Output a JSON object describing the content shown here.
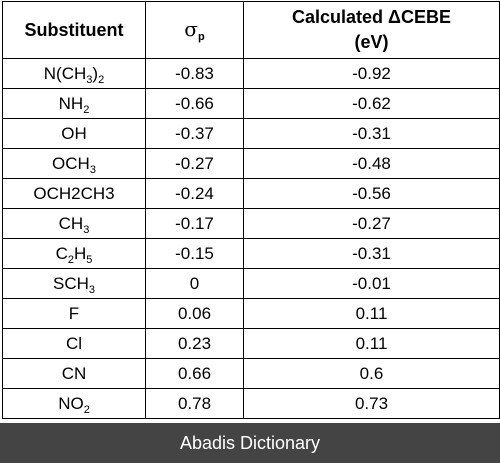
{
  "table": {
    "headers": {
      "substituent": "Substituent",
      "sigma_symbol": "σ",
      "sigma_subscript": "p",
      "cebe_line1_prefix": "Calculated ",
      "cebe_line1_delta": "ΔCEBE",
      "cebe_line2": "(eV)"
    },
    "rows": [
      {
        "sub_parts": [
          [
            "N(CH",
            false
          ],
          [
            "3",
            true
          ],
          [
            ")",
            false
          ],
          [
            "2",
            true
          ]
        ],
        "sigma_p": "-0.83",
        "delta_cebe": "-0.92"
      },
      {
        "sub_parts": [
          [
            "NH",
            false
          ],
          [
            "2",
            true
          ]
        ],
        "sigma_p": "-0.66",
        "delta_cebe": "-0.62"
      },
      {
        "sub_parts": [
          [
            "OH",
            false
          ]
        ],
        "sigma_p": "-0.37",
        "delta_cebe": "-0.31"
      },
      {
        "sub_parts": [
          [
            "OCH",
            false
          ],
          [
            "3",
            true
          ]
        ],
        "sigma_p": "-0.27",
        "delta_cebe": "-0.48"
      },
      {
        "sub_parts": [
          [
            "OCH2CH3",
            false
          ]
        ],
        "sigma_p": "-0.24",
        "delta_cebe": "-0.56"
      },
      {
        "sub_parts": [
          [
            "CH",
            false
          ],
          [
            "3",
            true
          ]
        ],
        "sigma_p": "-0.17",
        "delta_cebe": "-0.27"
      },
      {
        "sub_parts": [
          [
            "C",
            false
          ],
          [
            "2",
            true
          ],
          [
            "H",
            false
          ],
          [
            "5",
            true
          ]
        ],
        "sigma_p": "-0.15",
        "delta_cebe": "-0.31"
      },
      {
        "sub_parts": [
          [
            "SCH",
            false
          ],
          [
            "3",
            true
          ]
        ],
        "sigma_p": "0",
        "delta_cebe": "-0.01"
      },
      {
        "sub_parts": [
          [
            "F",
            false
          ]
        ],
        "sigma_p": "0.06",
        "delta_cebe": "0.11"
      },
      {
        "sub_parts": [
          [
            "Cl",
            false
          ]
        ],
        "sigma_p": "0.23",
        "delta_cebe": "0.11"
      },
      {
        "sub_parts": [
          [
            "CN",
            false
          ]
        ],
        "sigma_p": "0.66",
        "delta_cebe": "0.6"
      },
      {
        "sub_parts": [
          [
            "NO",
            false
          ],
          [
            "2",
            true
          ]
        ],
        "sigma_p": "0.78",
        "delta_cebe": "0.73"
      }
    ]
  },
  "footer": {
    "text": "Abadis Dictionary",
    "background": "#444444",
    "color": "#ffffff"
  }
}
